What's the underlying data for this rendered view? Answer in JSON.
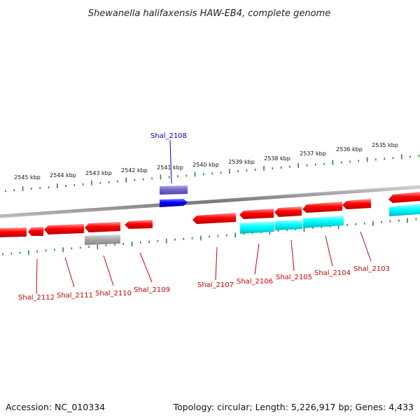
{
  "title": "Shewanella halifaxensis HAW-EB4, complete genome",
  "footer": {
    "accession": "Accession: NC_010334",
    "summary": "Topology: circular; Length: 5,226,917 bp; Genes: 4,433"
  },
  "colors": {
    "forward_gene": "#ff0000",
    "reverse_gene": "#ff0000",
    "highlight_forward": "#0000ff",
    "highlight_reverse": "#7766cc",
    "cyan_feature": "#00ffff",
    "grey_feature": "#aaaaaa",
    "backbone": "#888888",
    "ticks": "#2a8a2a",
    "label_red": "#cc0000",
    "label_blue": "#0000cc"
  },
  "kbp_labels": [
    "2545 kbp",
    "2544 kbp",
    "2543 kbp",
    "2542 kbp",
    "2541 kbp",
    "2540 kbp",
    "2539 kbp",
    "2538 kbp",
    "2537 kbp",
    "2536 kbp",
    "2535 kbp"
  ],
  "gene_labels": [
    {
      "text": "Shal_2108",
      "color": "blue"
    },
    {
      "text": "Shal_2112",
      "color": "red"
    },
    {
      "text": "Shal_2111",
      "color": "red"
    },
    {
      "text": "Shal_2110",
      "color": "red"
    },
    {
      "text": "Shal_2109",
      "color": "red"
    },
    {
      "text": "Shal_2107",
      "color": "red"
    },
    {
      "text": "Shal_2106",
      "color": "red"
    },
    {
      "text": "Shal_2105",
      "color": "red"
    },
    {
      "text": "Shal_2104",
      "color": "red"
    },
    {
      "text": "Shal_2103",
      "color": "red"
    }
  ]
}
